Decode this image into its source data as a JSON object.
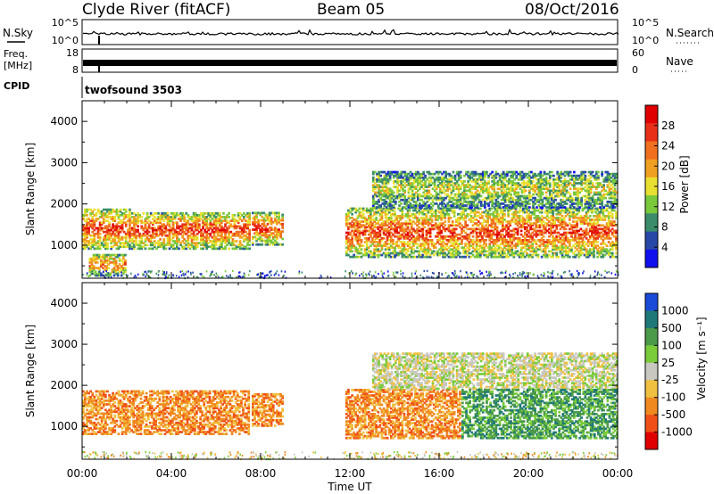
{
  "header": {
    "station": "Clyde River (fitACF)",
    "beam": "Beam 05",
    "date": "08/Oct/2016"
  },
  "nsky_panel": {
    "left_label": "N.Sky",
    "left_ticks": [
      "10^5",
      "10^0"
    ],
    "right_label": "N.Search",
    "right_ticks": [
      "10^5",
      "10^0"
    ]
  },
  "freq_panel": {
    "left_label_1": "Freq.",
    "left_label_2": "[MHz]",
    "left_ticks": [
      "18",
      "8"
    ],
    "right_label": "Nave",
    "right_ticks": [
      "60",
      "0"
    ]
  },
  "cpid_panel": {
    "label": "CPID",
    "program": "twofsound 3503"
  },
  "colors": {
    "power": [
      "#1010ee",
      "#2848a8",
      "#3a8c6a",
      "#7ac83c",
      "#e8e030",
      "#f0a020",
      "#f07020",
      "#e83018",
      "#e00000"
    ],
    "velocity": [
      "#1a4bd8",
      "#1e7878",
      "#4a9a4a",
      "#7acc3a",
      "#c8c8c0",
      "#f0c040",
      "#f08a20",
      "#f05018",
      "#e00000"
    ]
  },
  "chart_data": [
    {
      "type": "heatmap",
      "panel": "power",
      "ylabel": "Slant Range [km]",
      "ylim": [
        200,
        4500
      ],
      "yticks": [
        "1000",
        "2000",
        "3000",
        "4000"
      ],
      "xlim": [
        "00:00",
        "24:00"
      ],
      "colorbar": {
        "label": "Power [dB]",
        "ticks": [
          "4",
          "8",
          "12",
          "16",
          "20",
          "24",
          "28"
        ],
        "range": [
          0,
          32
        ]
      },
      "echo_regions": [
        {
          "t_start": 0.0,
          "t_end": 2.2,
          "r_min": 900,
          "r_max": 1900,
          "peak_db": 28
        },
        {
          "t_start": 0.3,
          "t_end": 2.0,
          "r_min": 250,
          "r_max": 800,
          "peak_db": 24
        },
        {
          "t_start": 2.2,
          "t_end": 7.5,
          "r_min": 900,
          "r_max": 1800,
          "peak_db": 28
        },
        {
          "t_start": 7.6,
          "t_end": 9.0,
          "r_min": 1000,
          "r_max": 1800,
          "peak_db": 28
        },
        {
          "t_start": 11.8,
          "t_end": 24.0,
          "r_min": 700,
          "r_max": 1900,
          "peak_db": 28
        },
        {
          "t_start": 13.0,
          "t_end": 24.0,
          "r_min": 1900,
          "r_max": 2800,
          "peak_db": 16
        }
      ]
    },
    {
      "type": "heatmap",
      "panel": "velocity",
      "ylabel": "Slant Range [km]",
      "ylim": [
        200,
        4500
      ],
      "yticks": [
        "1000",
        "2000",
        "3000",
        "4000"
      ],
      "xlim": [
        "00:00",
        "24:00"
      ],
      "xlabel": "Time UT",
      "xticks": [
        "00:00",
        "04:00",
        "08:00",
        "12:00",
        "16:00",
        "20:00",
        "00:00"
      ],
      "colorbar": {
        "label": "Velocity [m s⁻¹]",
        "ticks": [
          "1000",
          "500",
          "100",
          "25",
          "-25",
          "-100",
          "-500",
          "-1000"
        ]
      },
      "echo_regions": [
        {
          "t_start": 0.0,
          "t_end": 7.5,
          "r_min": 800,
          "r_max": 1900,
          "velocity": -300
        },
        {
          "t_start": 7.6,
          "t_end": 9.0,
          "r_min": 1000,
          "r_max": 1800,
          "velocity": -300
        },
        {
          "t_start": 11.8,
          "t_end": 17.0,
          "r_min": 700,
          "r_max": 1900,
          "velocity": -300
        },
        {
          "t_start": 13.0,
          "t_end": 24.0,
          "r_min": 1900,
          "r_max": 2800,
          "velocity": 0
        },
        {
          "t_start": 17.0,
          "t_end": 24.0,
          "r_min": 700,
          "r_max": 1900,
          "velocity": 200
        }
      ]
    }
  ]
}
